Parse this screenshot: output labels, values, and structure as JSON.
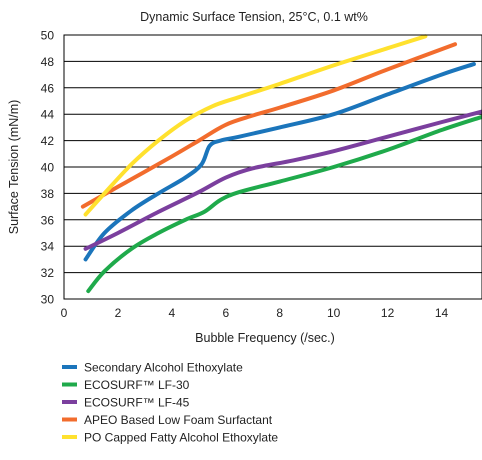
{
  "chart_data": {
    "type": "line",
    "title": "Dynamic Surface Tension, 25°C, 0.1 wt%",
    "xlabel": "Bubble Frequency (/sec.)",
    "ylabel": "Surface Tension (mN/m)",
    "xlim": [
      0,
      15.5
    ],
    "ylim": [
      30,
      50
    ],
    "xticks": [
      0,
      2,
      4,
      6,
      8,
      10,
      12,
      14
    ],
    "yticks": [
      30,
      32,
      34,
      36,
      38,
      40,
      42,
      44,
      46,
      48,
      50
    ],
    "grid": "horizontal",
    "legend_position": "bottom",
    "series": [
      {
        "name": "Secondary Alcohol Ethoxylate",
        "color": "#1b75bb",
        "points": [
          [
            0.8,
            33.0
          ],
          [
            1.5,
            35.0
          ],
          [
            2.5,
            36.7
          ],
          [
            3.5,
            38.0
          ],
          [
            4.5,
            39.2
          ],
          [
            5.1,
            40.2
          ],
          [
            5.4,
            41.6
          ],
          [
            5.8,
            42.0
          ],
          [
            6.5,
            42.3
          ],
          [
            8,
            43.0
          ],
          [
            10,
            44.0
          ],
          [
            12,
            45.5
          ],
          [
            14,
            47.0
          ],
          [
            15.2,
            47.8
          ]
        ]
      },
      {
        "name": "ECOSURF™ LF-30",
        "color": "#1faa4b",
        "points": [
          [
            0.9,
            30.6
          ],
          [
            1.5,
            32.1
          ],
          [
            2.5,
            33.8
          ],
          [
            3.5,
            35.0
          ],
          [
            4.5,
            36.0
          ],
          [
            5.2,
            36.6
          ],
          [
            5.8,
            37.5
          ],
          [
            6.5,
            38.1
          ],
          [
            8,
            38.9
          ],
          [
            10,
            40.0
          ],
          [
            12,
            41.3
          ],
          [
            14,
            42.8
          ],
          [
            15.5,
            43.8
          ]
        ]
      },
      {
        "name": "ECOSURF™ LF-45",
        "color": "#7b3f9e",
        "points": [
          [
            0.8,
            33.8
          ],
          [
            2,
            35.0
          ],
          [
            3.5,
            36.6
          ],
          [
            5,
            38.1
          ],
          [
            6,
            39.2
          ],
          [
            7,
            39.9
          ],
          [
            8.5,
            40.5
          ],
          [
            10,
            41.2
          ],
          [
            12,
            42.3
          ],
          [
            14,
            43.4
          ],
          [
            15.5,
            44.2
          ]
        ]
      },
      {
        "name": "APEO Based Low Foam Surfactant",
        "color": "#f26c2d",
        "points": [
          [
            0.7,
            37.0
          ],
          [
            2,
            38.5
          ],
          [
            4,
            40.8
          ],
          [
            5,
            42.0
          ],
          [
            6,
            43.2
          ],
          [
            7,
            43.9
          ],
          [
            8,
            44.5
          ],
          [
            10,
            45.8
          ],
          [
            12,
            47.4
          ],
          [
            14.5,
            49.3
          ]
        ]
      },
      {
        "name": "PO Capped Fatty Alcohol Ethoxylate",
        "color": "#ffe12e",
        "points": [
          [
            0.8,
            36.4
          ],
          [
            1.5,
            38.0
          ],
          [
            2.5,
            40.2
          ],
          [
            3.5,
            42.0
          ],
          [
            4.5,
            43.5
          ],
          [
            5.5,
            44.6
          ],
          [
            6.5,
            45.3
          ],
          [
            8,
            46.3
          ],
          [
            10,
            47.7
          ],
          [
            12,
            49.0
          ],
          [
            13.4,
            49.9
          ]
        ]
      }
    ]
  }
}
